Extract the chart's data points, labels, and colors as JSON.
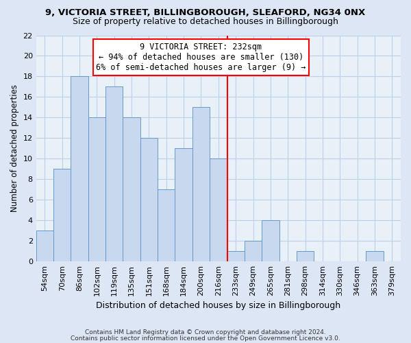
{
  "title1": "9, VICTORIA STREET, BILLINGBOROUGH, SLEAFORD, NG34 0NX",
  "title2": "Size of property relative to detached houses in Billingborough",
  "xlabel": "Distribution of detached houses by size in Billingborough",
  "ylabel": "Number of detached properties",
  "bin_labels": [
    "54sqm",
    "70sqm",
    "86sqm",
    "102sqm",
    "119sqm",
    "135sqm",
    "151sqm",
    "168sqm",
    "184sqm",
    "200sqm",
    "216sqm",
    "233sqm",
    "249sqm",
    "265sqm",
    "281sqm",
    "298sqm",
    "314sqm",
    "330sqm",
    "346sqm",
    "363sqm",
    "379sqm"
  ],
  "bar_heights": [
    3,
    9,
    18,
    14,
    17,
    14,
    12,
    7,
    11,
    15,
    10,
    1,
    2,
    4,
    0,
    1,
    0,
    0,
    0,
    1,
    0
  ],
  "bar_color": "#c8d9ef",
  "bar_edge_color": "#6699cc",
  "ylim_max": 22,
  "yticks": [
    0,
    2,
    4,
    6,
    8,
    10,
    12,
    14,
    16,
    18,
    20,
    22
  ],
  "annotation_line0": "9 VICTORIA STREET: 232sqm",
  "annotation_line1": "← 94% of detached houses are smaller (130)",
  "annotation_line2": "6% of semi-detached houses are larger (9) →",
  "footnote1": "Contains HM Land Registry data © Crown copyright and database right 2024.",
  "footnote2": "Contains public sector information licensed under the Open Government Licence v3.0.",
  "bg_color": "#dce6f5",
  "plot_bg_color": "#e8f0f8",
  "grid_color": "#c0cfe8",
  "red_line_index": 11,
  "title1_fontsize": 9.5,
  "title2_fontsize": 9,
  "ylabel_fontsize": 8.5,
  "xlabel_fontsize": 9,
  "tick_fontsize": 8,
  "annot_fontsize": 8.5,
  "footnote_fontsize": 6.5
}
